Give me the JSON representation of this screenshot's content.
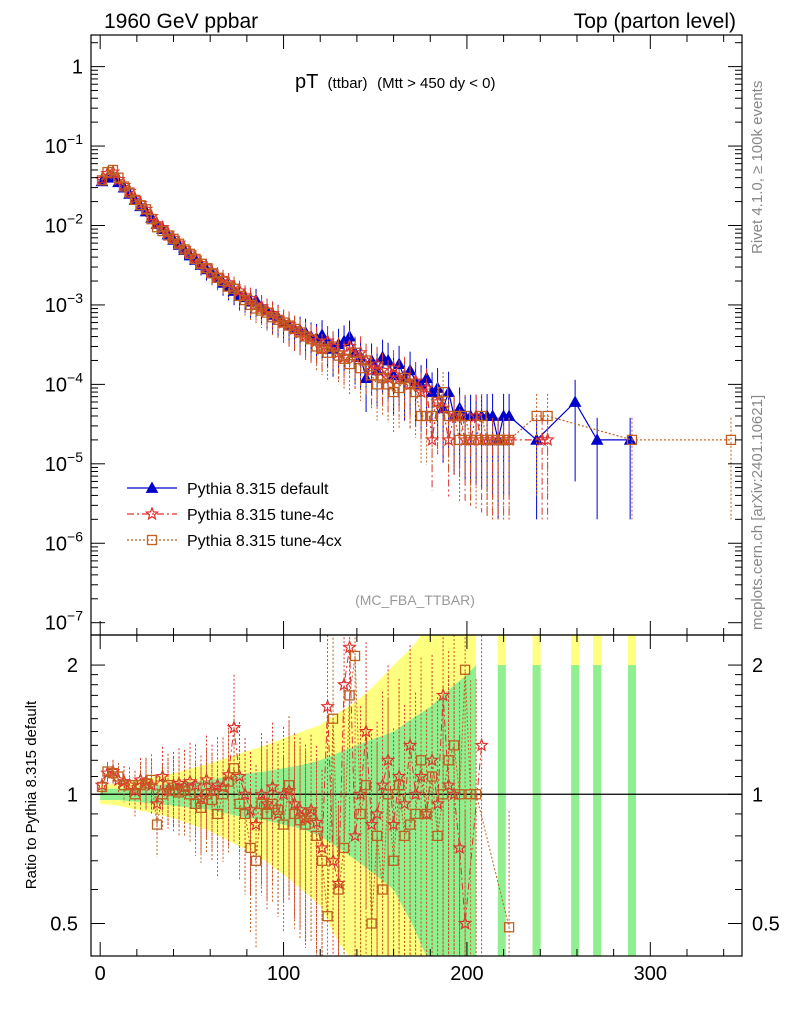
{
  "header": {
    "left": "1960 GeV ppbar",
    "right": "Top (parton level)"
  },
  "side_labels": {
    "rivet": "Rivet 4.1.0, ≥ 100k events",
    "mcplots": "mcplots.cern.ch [arXiv:2401.10621]"
  },
  "chart_data": [
    {
      "panel": "main",
      "type": "scatter",
      "title": "pT (ttbar) (Mtt > 450 dy < 0)",
      "title_main": "pT",
      "title_sub": "(ttbar)",
      "title_rest": "(Mtt > 450 dy < 0)",
      "watermark": "(MC_FBA_TTBAR)",
      "yscale": "log",
      "xlim": [
        -5,
        350
      ],
      "ylim": [
        7e-08,
        2.5
      ],
      "y_ticks": [
        {
          "value": 1,
          "label_base": "1",
          "label_exp": ""
        },
        {
          "value": 0.1,
          "label_base": "10",
          "label_exp": "−1"
        },
        {
          "value": 0.01,
          "label_base": "10",
          "label_exp": "−2"
        },
        {
          "value": 0.001,
          "label_base": "10",
          "label_exp": "−3"
        },
        {
          "value": 0.0001,
          "label_base": "10",
          "label_exp": "−4"
        },
        {
          "value": 1e-05,
          "label_base": "10",
          "label_exp": "−5"
        },
        {
          "value": 1e-06,
          "label_base": "10",
          "label_exp": "−6"
        },
        {
          "value": 1e-07,
          "label_base": "10",
          "label_exp": "−7"
        }
      ],
      "legend_position": "middle-left",
      "series": [
        {
          "name": "Pythia 8.315 default",
          "color": "#0000cc",
          "marker": "triangle",
          "line": "solid",
          "x": [
            1,
            4,
            7,
            10,
            13,
            16,
            19,
            22,
            25,
            28,
            31,
            34,
            37,
            40,
            43,
            46,
            49,
            52,
            55,
            58,
            61,
            64,
            67,
            70,
            73,
            76,
            79,
            82,
            85,
            88,
            91,
            94,
            97,
            100,
            103,
            106,
            109,
            112,
            115,
            118,
            121,
            124,
            127,
            130,
            133,
            136,
            139,
            142,
            145,
            148,
            151,
            154,
            157,
            160,
            163,
            166,
            169,
            172,
            175,
            178,
            181,
            184,
            187,
            190,
            193,
            196,
            199,
            202,
            205,
            208,
            211,
            214,
            217,
            220,
            223,
            238,
            259,
            271,
            289
          ],
          "y": [
            0.036,
            0.04,
            0.042,
            0.035,
            0.03,
            0.025,
            0.021,
            0.0175,
            0.015,
            0.0125,
            0.0105,
            0.009,
            0.0077,
            0.0066,
            0.0057,
            0.0049,
            0.0042,
            0.0037,
            0.0032,
            0.0028,
            0.0025,
            0.0022,
            0.0019,
            0.0017,
            0.0015,
            0.0013,
            0.00125,
            0.0011,
            0.00115,
            0.00095,
            0.00085,
            0.00075,
            0.0007,
            0.0006,
            0.00055,
            0.0005,
            0.00048,
            0.00045,
            0.0004,
            0.00038,
            0.00042,
            0.00035,
            0.00028,
            0.00032,
            0.00035,
            0.0004,
            0.00025,
            0.00022,
            0.00012,
            0.0002,
            0.00015,
            0.00022,
            0.0002,
            0.00013,
            0.00018,
            0.00012,
            0.00015,
            0.00011,
            0.0001,
            0.00012,
            8e-05,
            9e-05,
            5e-05,
            8e-05,
            4e-05,
            5e-05,
            4e-05,
            4e-05,
            4e-05,
            4e-05,
            4e-05,
            4e-05,
            2e-05,
            4e-05,
            4e-05,
            2e-05,
            6e-05,
            2e-05,
            2e-05
          ]
        },
        {
          "name": "Pythia 8.315 tune-4c",
          "color": "#e03030",
          "marker": "star",
          "line": "dashdot",
          "x": [
            1,
            4,
            7,
            10,
            13,
            16,
            19,
            22,
            25,
            28,
            31,
            34,
            37,
            40,
            43,
            46,
            49,
            52,
            55,
            58,
            61,
            64,
            67,
            70,
            73,
            76,
            79,
            82,
            85,
            88,
            91,
            94,
            97,
            100,
            103,
            106,
            109,
            112,
            115,
            118,
            121,
            124,
            127,
            130,
            133,
            136,
            139,
            142,
            145,
            148,
            151,
            154,
            157,
            160,
            163,
            166,
            169,
            172,
            175,
            178,
            181,
            184,
            187,
            190,
            193,
            196,
            199,
            202,
            205,
            208,
            211,
            214,
            217,
            220,
            223,
            241,
            244
          ],
          "y": [
            0.038,
            0.045,
            0.047,
            0.038,
            0.032,
            0.027,
            0.022,
            0.019,
            0.016,
            0.013,
            0.0105,
            0.0094,
            0.008,
            0.0069,
            0.006,
            0.0051,
            0.0045,
            0.0039,
            0.0033,
            0.003,
            0.0026,
            0.0023,
            0.0021,
            0.0019,
            0.0017,
            0.0015,
            0.0013,
            0.0012,
            0.001,
            0.00095,
            0.00085,
            0.00078,
            0.00068,
            0.0006,
            0.00057,
            0.0005,
            0.00045,
            0.00041,
            0.00038,
            0.00035,
            0.00028,
            0.00035,
            0.0003,
            0.00025,
            0.00022,
            0.0003,
            0.00022,
            0.00025,
            0.0002,
            0.00015,
            0.00018,
            0.00015,
            0.00012,
            0.00016,
            0.00012,
            0.00013,
            0.0001,
            0.00011,
            8e-05,
            9e-05,
            2e-05,
            6e-05,
            5e-05,
            2e-05,
            4e-05,
            4e-05,
            2e-05,
            2e-05,
            4e-05,
            2e-05,
            2e-05,
            2e-05,
            2e-05,
            2e-05,
            2e-05,
            2e-05,
            2e-05
          ]
        },
        {
          "name": "Pythia 8.315 tune-4cx",
          "color": "#c06020",
          "marker": "square",
          "line": "dotted",
          "x": [
            1,
            4,
            7,
            10,
            13,
            16,
            19,
            22,
            25,
            28,
            31,
            34,
            37,
            40,
            43,
            46,
            49,
            52,
            55,
            58,
            61,
            64,
            67,
            70,
            73,
            76,
            79,
            82,
            85,
            88,
            91,
            94,
            97,
            100,
            103,
            106,
            109,
            112,
            115,
            118,
            121,
            124,
            127,
            130,
            133,
            136,
            139,
            142,
            145,
            148,
            151,
            154,
            157,
            160,
            163,
            166,
            169,
            172,
            175,
            178,
            181,
            184,
            187,
            190,
            193,
            196,
            199,
            202,
            205,
            208,
            211,
            214,
            217,
            220,
            223,
            238,
            244,
            290,
            344
          ],
          "y": [
            0.037,
            0.047,
            0.05,
            0.04,
            0.031,
            0.026,
            0.021,
            0.018,
            0.016,
            0.012,
            0.0095,
            0.0085,
            0.0075,
            0.0068,
            0.0059,
            0.005,
            0.0044,
            0.0038,
            0.0033,
            0.0029,
            0.0025,
            0.0022,
            0.002,
            0.0017,
            0.0016,
            0.0013,
            0.00115,
            0.001,
            0.0009,
            0.00085,
            0.0008,
            0.0007,
            0.00065,
            0.0006,
            0.00055,
            0.0005,
            0.00045,
            0.0004,
            0.00037,
            0.0003,
            0.00028,
            0.00025,
            0.0003,
            0.00023,
            0.00021,
            0.00018,
            0.00025,
            0.00016,
            0.0002,
            0.00013,
            0.0001,
            0.00012,
            0.0001,
            8e-05,
            9e-05,
            0.00012,
            0.0001,
            8e-05,
            4e-05,
            4e-05,
            4e-05,
            6e-05,
            8e-05,
            4e-05,
            4e-05,
            2e-05,
            4e-05,
            2e-05,
            2e-05,
            4e-05,
            2e-05,
            2e-05,
            2e-05,
            2e-05,
            2e-05,
            4e-05,
            4e-05,
            2e-05,
            2e-05
          ]
        }
      ]
    },
    {
      "panel": "ratio",
      "type": "scatter",
      "ylabel": "Ratio to Pythia 8.315 default",
      "yscale": "log",
      "xlim": [
        -5,
        350
      ],
      "ylim": [
        0.42,
        2.35
      ],
      "x_ticks": [
        0,
        100,
        200,
        300
      ],
      "y_ticks": [
        {
          "value": 2,
          "label": "2"
        },
        {
          "value": 1,
          "label": "1"
        },
        {
          "value": 0.5,
          "label": "0.5"
        }
      ],
      "band_x": [
        0,
        10,
        20,
        30,
        40,
        50,
        60,
        70,
        80,
        90,
        100,
        110,
        120,
        130,
        140,
        150,
        160,
        170,
        180,
        190,
        200,
        205
      ],
      "band_green": [
        0.03,
        0.03,
        0.04,
        0.05,
        0.06,
        0.07,
        0.08,
        0.1,
        0.12,
        0.13,
        0.15,
        0.17,
        0.2,
        0.25,
        0.3,
        0.35,
        0.4,
        0.5,
        0.6,
        0.75,
        0.9,
        1.0
      ],
      "band_yellow": [
        0.05,
        0.06,
        0.08,
        0.1,
        0.12,
        0.15,
        0.18,
        0.22,
        0.26,
        0.3,
        0.35,
        0.4,
        0.45,
        0.55,
        0.65,
        0.8,
        1.0,
        1.2,
        1.5,
        1.8,
        2.2,
        2.3
      ],
      "spikes_x": [
        219,
        238,
        259,
        271,
        290
      ],
      "series": [
        {
          "name": "Pythia 8.315 tune-4c",
          "color": "#e03030",
          "marker": "star",
          "x": [
            1,
            4,
            7,
            10,
            13,
            16,
            19,
            22,
            25,
            28,
            31,
            34,
            37,
            40,
            43,
            46,
            49,
            52,
            55,
            58,
            61,
            64,
            67,
            70,
            73,
            76,
            79,
            82,
            85,
            88,
            91,
            94,
            97,
            100,
            103,
            106,
            109,
            112,
            115,
            118,
            121,
            124,
            127,
            130,
            133,
            136,
            139,
            142,
            145,
            148,
            151,
            154,
            157,
            160,
            163,
            166,
            169,
            172,
            175,
            178,
            181,
            184,
            187,
            190,
            193,
            196,
            199,
            208
          ],
          "y": [
            1.05,
            1.12,
            1.13,
            1.08,
            1.07,
            1.05,
            1.02,
            1.08,
            1.07,
            1.05,
            0.95,
            1.1,
            1.02,
            1.05,
            1.06,
            1.04,
            1.07,
            1.05,
            0.98,
            1.08,
            1.02,
            1.05,
            1.04,
            1.11,
            1.43,
            1.1,
            1.0,
            0.92,
            0.85,
            1.0,
            0.95,
            1.04,
            0.9,
            1.0,
            1.02,
            0.95,
            0.92,
            0.88,
            0.92,
            0.86,
            0.75,
            1.6,
            0.7,
            0.62,
            1.8,
            2.2,
            0.8,
            1.0,
            1.4,
            0.85,
            0.9,
            1.05,
            1.2,
            0.85,
            1.1,
            0.95,
            1.3,
            1.0,
            1.1,
            0.9,
            1.2,
            0.95,
            1.7,
            1.05,
            1.0,
            0.75,
            0.5,
            1.3
          ]
        },
        {
          "name": "Pythia 8.315 tune-4cx",
          "color": "#c06020",
          "marker": "square",
          "x": [
            1,
            4,
            7,
            10,
            13,
            16,
            19,
            22,
            25,
            28,
            31,
            34,
            37,
            40,
            43,
            46,
            49,
            52,
            55,
            58,
            61,
            64,
            67,
            70,
            73,
            76,
            79,
            82,
            85,
            88,
            91,
            94,
            97,
            100,
            103,
            106,
            109,
            112,
            115,
            118,
            121,
            124,
            127,
            130,
            133,
            136,
            139,
            142,
            145,
            148,
            151,
            154,
            157,
            160,
            163,
            166,
            169,
            172,
            175,
            178,
            181,
            184,
            187,
            190,
            193,
            196,
            199,
            202,
            205,
            223
          ],
          "y": [
            1.04,
            1.13,
            1.12,
            1.1,
            1.05,
            1.05,
            1.0,
            1.05,
            1.06,
            1.08,
            0.85,
            1.0,
            1.05,
            1.02,
            1.01,
            1.02,
            1.0,
            0.95,
            0.93,
            1.0,
            0.97,
            0.9,
            1.0,
            1.07,
            1.15,
            0.95,
            0.9,
            0.75,
            0.7,
            0.95,
            0.9,
            0.95,
            0.92,
            0.85,
            1.05,
            0.9,
            0.87,
            0.85,
            0.9,
            0.8,
            0.7,
            0.52,
            1.5,
            0.6,
            0.75,
            1.7,
            2.1,
            0.9,
            1.05,
            0.5,
            0.8,
            0.6,
            1.0,
            0.7,
            1.05,
            0.8,
            0.85,
            0.9,
            1.2,
            0.9,
            1.1,
            0.8,
            1.0,
            1.2,
            1.3,
            1.0,
            1.95,
            1.0,
            1.0,
            0.49
          ]
        }
      ]
    }
  ]
}
